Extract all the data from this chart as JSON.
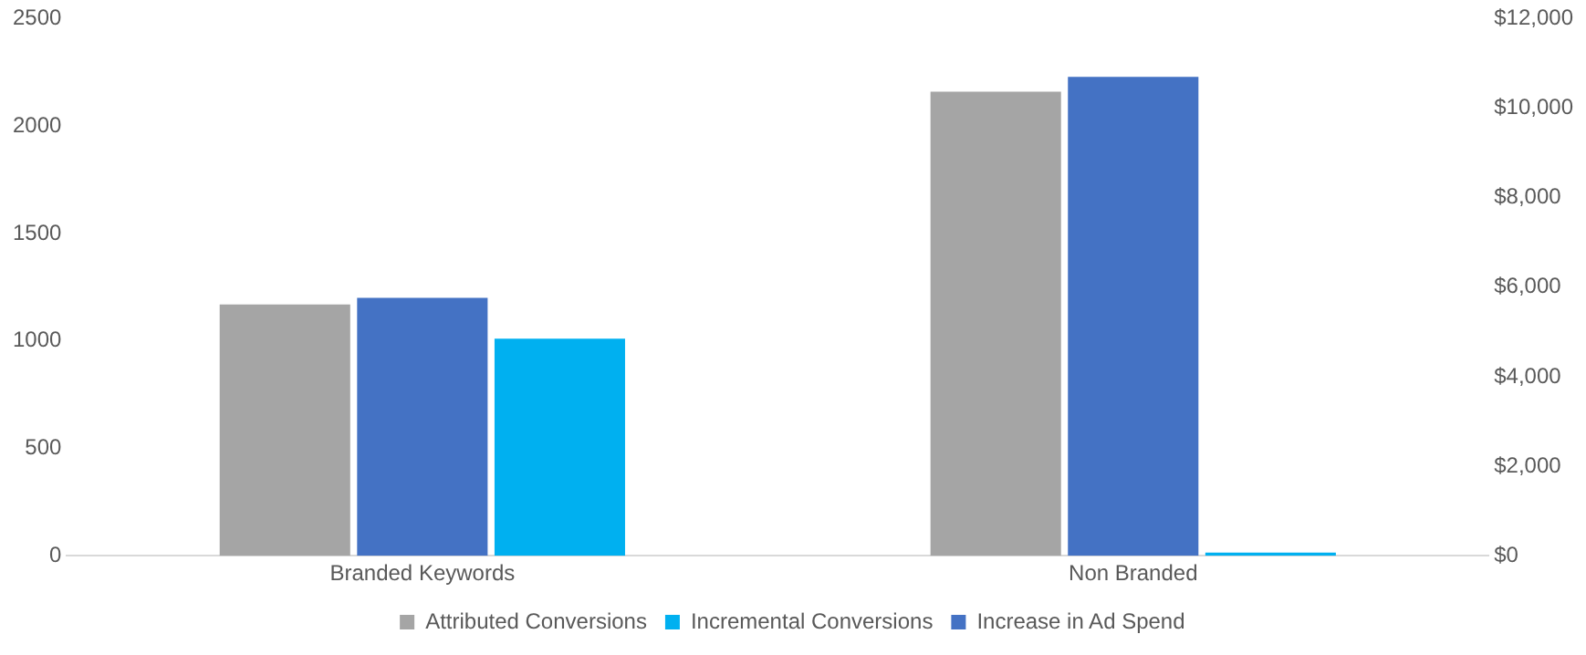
{
  "chart_data": {
    "type": "bar",
    "categories": [
      "Branded Keywords",
      "Non Branded"
    ],
    "series": [
      {
        "name": "Attributed Conversions",
        "color": "#a5a5a5",
        "values": [
          1170,
          2160
        ]
      },
      {
        "name": "Increase in Ad Spend",
        "color": "#4472c4",
        "values": [
          5760,
          10700
        ],
        "axis": "y2"
      },
      {
        "name": "Incremental Conversions",
        "color": "#00b0f0",
        "values": [
          1010,
          15
        ]
      }
    ],
    "ylim": [
      0,
      2500
    ],
    "yticks": [
      0,
      500,
      1000,
      1500,
      2000,
      2500
    ],
    "y2lim": [
      0,
      12000
    ],
    "y2ticks": [
      {
        "value": 0,
        "label": "$0"
      },
      {
        "value": 2000,
        "label": "$2,000"
      },
      {
        "value": 4000,
        "label": "$4,000"
      },
      {
        "value": 6000,
        "label": "$6,000"
      },
      {
        "value": 8000,
        "label": "$8,000"
      },
      {
        "value": 10000,
        "label": "$10,000"
      },
      {
        "value": 12000,
        "label": "$12,000"
      }
    ],
    "grid": false,
    "legend": "bottom"
  }
}
